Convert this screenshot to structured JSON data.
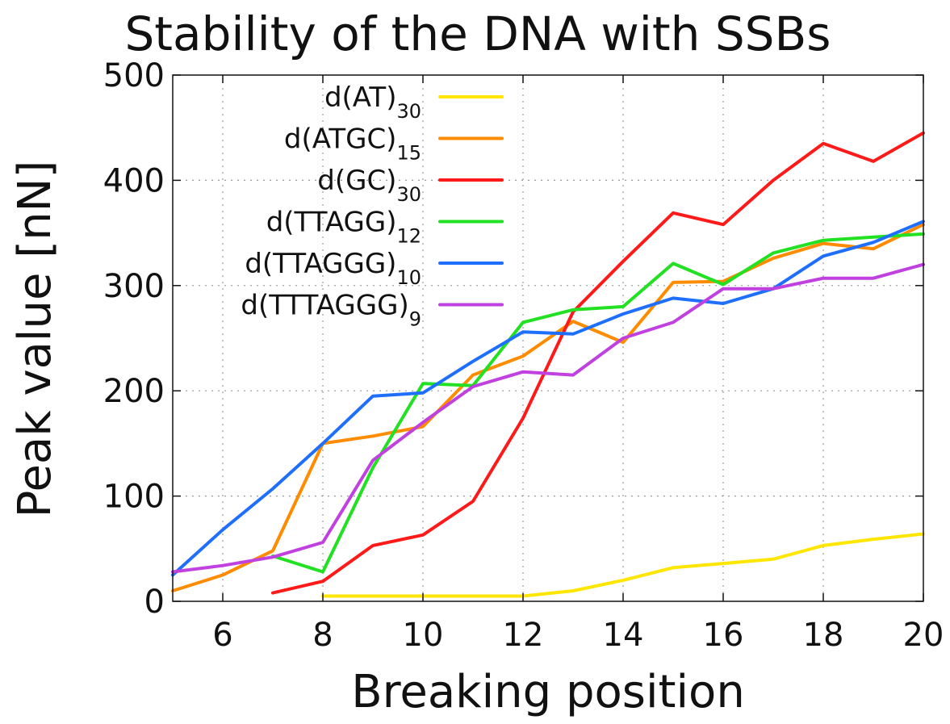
{
  "chart_data": {
    "type": "line",
    "title": "Stability of the DNA with SSBs",
    "xlabel": "Breaking position",
    "ylabel": "Peak value [nN]",
    "xlim": [
      5,
      20
    ],
    "ylim": [
      0,
      500
    ],
    "xticks": [
      6,
      8,
      10,
      12,
      14,
      16,
      18,
      20
    ],
    "yticks": [
      0,
      100,
      200,
      300,
      400,
      500
    ],
    "grid": true,
    "legend_position": "top-left",
    "series": [
      {
        "name": "d(AT)",
        "subscript": "30",
        "color": "#ffe600",
        "x": [
          8,
          9,
          10,
          11,
          12,
          13,
          14,
          15,
          16,
          17,
          18,
          19,
          20
        ],
        "y": [
          5,
          5,
          5,
          5,
          5,
          10,
          20,
          32,
          36,
          40,
          53,
          59,
          64
        ]
      },
      {
        "name": "d(ATGC)",
        "subscript": "15",
        "color": "#ff8c00",
        "x": [
          5,
          6,
          7,
          8,
          9,
          10,
          11,
          12,
          13,
          14,
          15,
          16,
          17,
          18,
          19,
          20
        ],
        "y": [
          10,
          25,
          48,
          150,
          157,
          166,
          215,
          233,
          266,
          246,
          303,
          304,
          326,
          340,
          335,
          358
        ]
      },
      {
        "name": "d(GC)",
        "subscript": "30",
        "color": "#ff1a1a",
        "x": [
          7,
          8,
          9,
          10,
          11,
          12,
          13,
          14,
          15,
          16,
          17,
          18,
          19,
          20
        ],
        "y": [
          8,
          19,
          53,
          63,
          95,
          174,
          275,
          323,
          369,
          358,
          400,
          435,
          418,
          445
        ]
      },
      {
        "name": "d(TTAGG)",
        "subscript": "12",
        "color": "#22e022",
        "x": [
          7,
          8,
          9,
          10,
          11,
          12,
          13,
          14,
          15,
          16,
          17,
          18,
          19,
          20
        ],
        "y": [
          43,
          28,
          127,
          207,
          205,
          265,
          277,
          280,
          321,
          301,
          331,
          343,
          346,
          349
        ]
      },
      {
        "name": "d(TTAGGG)",
        "subscript": "10",
        "color": "#1f6fff",
        "x": [
          5,
          6,
          7,
          8,
          9,
          10,
          11,
          12,
          13,
          14,
          15,
          16,
          17,
          18,
          19,
          20
        ],
        "y": [
          25,
          68,
          107,
          150,
          195,
          198,
          228,
          256,
          254,
          273,
          288,
          283,
          297,
          328,
          341,
          361
        ]
      },
      {
        "name": "d(TTTAGGG)",
        "subscript": "9",
        "color": "#c040e0",
        "x": [
          5,
          6,
          7,
          8,
          9,
          10,
          11,
          12,
          13,
          14,
          15,
          16,
          17,
          18,
          19,
          20
        ],
        "y": [
          28,
          34,
          42,
          56,
          134,
          170,
          204,
          218,
          215,
          250,
          265,
          297,
          297,
          307,
          307,
          320
        ]
      }
    ]
  }
}
